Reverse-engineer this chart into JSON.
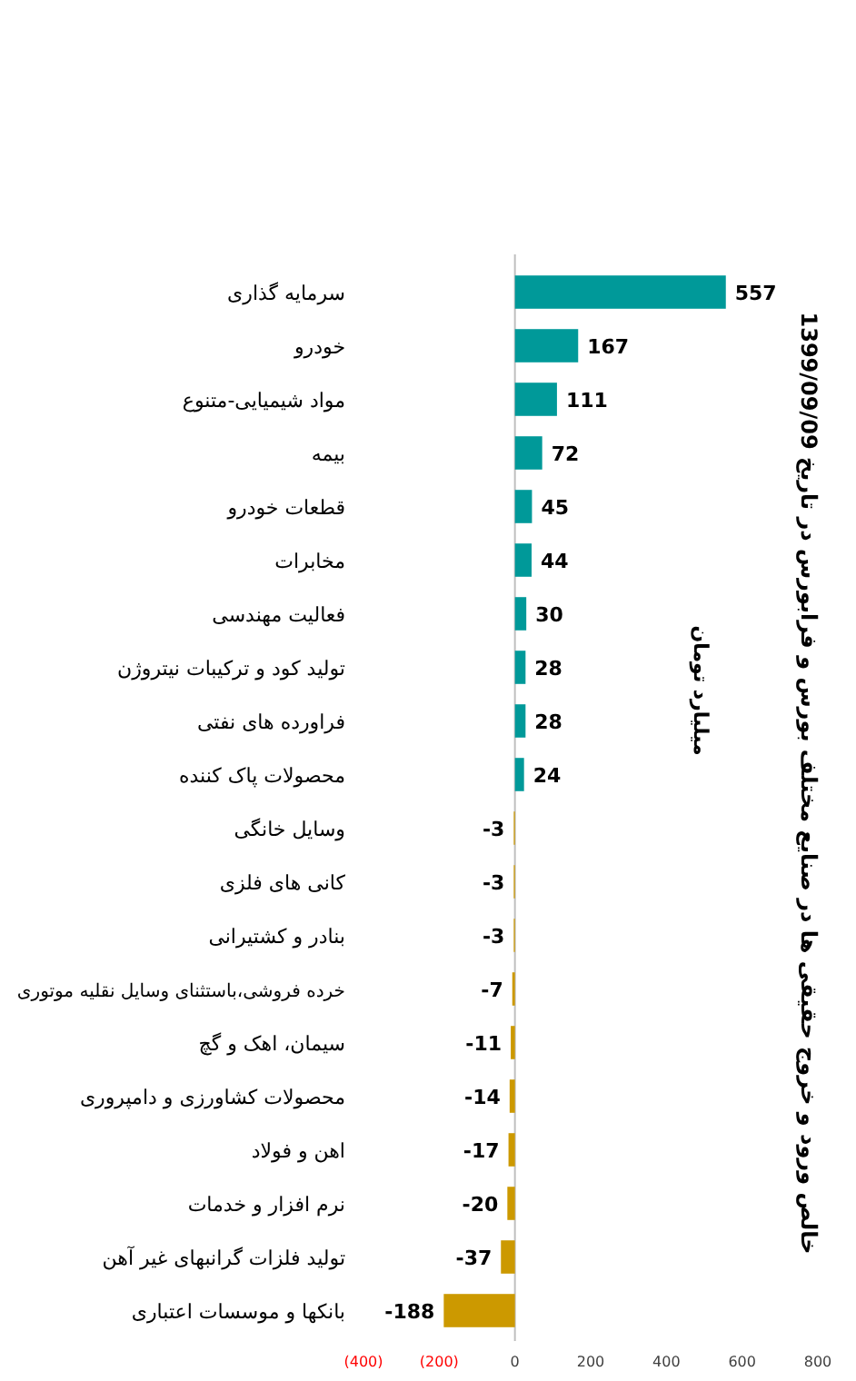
{
  "chart_data": {
    "type": "bar",
    "orientation": "horizontal",
    "title": "خالص ورود و خروج حقیقی ها در صنایع مختلف بورس و فرابورس در تاریخ 1399/09/09",
    "annotations": [
      "میلیارد تومان"
    ],
    "categories": [
      "سرمایه گذاری",
      "خودرو",
      "مواد شیمیایی-متنوع",
      "بیمه",
      "قطعات خودرو",
      "مخابرات",
      "فعالیت مهندسی",
      "تولید کود و ترکیبات نیتروژن",
      "فراورده های نفتی",
      "محصولات پاک کننده",
      "وسایل خانگی",
      "کانی های فلزی",
      "بنادر و کشتیرانی",
      "خرده فروشی،باستثنای وسایل نقلیه موتوری",
      "سیمان، اهک و گچ",
      "محصولات کشاورزی و دامپروری",
      "اهن و فولاد",
      "نرم افزار و خدمات",
      "تولید فلزات گرانبهای غیر آهن",
      "بانکها و موسسات اعتباری"
    ],
    "values": [
      557,
      167,
      111,
      72,
      45,
      44,
      30,
      28,
      28,
      24,
      -3,
      -3,
      -3,
      -7,
      -11,
      -14,
      -17,
      -20,
      -37,
      -188
    ],
    "colors": [
      "#009999",
      "#009999",
      "#009999",
      "#009999",
      "#009999",
      "#009999",
      "#009999",
      "#009999",
      "#009999",
      "#009999",
      "#cc9900",
      "#cc9900",
      "#cc9900",
      "#cc9900",
      "#cc9900",
      "#cc9900",
      "#cc9900",
      "#cc9900",
      "#cc9900",
      "#cc9900"
    ],
    "xlim": [
      -400,
      800
    ],
    "xticks": [
      {
        "value": -400,
        "label": "(400)"
      },
      {
        "value": -200,
        "label": "(200)"
      },
      0,
      200,
      400,
      600,
      800
    ],
    "data_labels": true
  }
}
